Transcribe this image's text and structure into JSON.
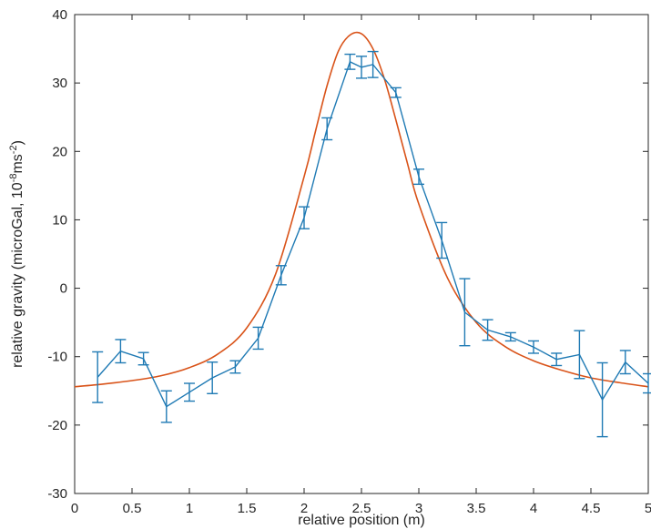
{
  "chart_data": {
    "type": "line",
    "xlabel": "relative position (m)",
    "ylabel": {
      "prefix": "relative gravity (microGal, 10",
      "sup1": "-8",
      "middle": "ms",
      "sup2": "-2",
      "suffix": ")"
    },
    "xlim": [
      0,
      5
    ],
    "ylim": [
      -30,
      40
    ],
    "xticks": [
      0,
      0.5,
      1,
      1.5,
      2,
      2.5,
      3,
      3.5,
      4,
      4.5,
      5
    ],
    "xtick_labels": [
      "0",
      "0.5",
      "1",
      "1.5",
      "2",
      "2.5",
      "3",
      "3.5",
      "4",
      "4.5",
      "5"
    ],
    "yticks": [
      -30,
      -20,
      -10,
      0,
      10,
      20,
      30,
      40
    ],
    "ytick_labels": [
      "-30",
      "-20",
      "-10",
      "0",
      "10",
      "20",
      "30",
      "40"
    ],
    "grid": false,
    "series": [
      {
        "kind": "errorbar-line",
        "color": "#1f7ab4",
        "x": [
          0.2,
          0.4,
          0.6,
          0.8,
          1.0,
          1.2,
          1.4,
          1.6,
          1.8,
          2.0,
          2.2,
          2.4,
          2.5,
          2.6,
          2.8,
          3.0,
          3.2,
          3.4,
          3.6,
          3.8,
          4.0,
          4.2,
          4.4,
          4.6,
          4.8,
          5.0
        ],
        "y": [
          -13,
          -9.2,
          -10.3,
          -17.3,
          -15.2,
          -13.1,
          -11.5,
          -7.3,
          1.9,
          10.3,
          23.3,
          33.1,
          32.3,
          32.7,
          28.6,
          16.3,
          7.0,
          -3.5,
          -6.1,
          -7.1,
          -8.6,
          -10.4,
          -9.7,
          -16.3,
          -10.8,
          -13.9
        ],
        "err": [
          3.7,
          1.7,
          0.9,
          2.3,
          1.3,
          2.3,
          0.9,
          1.6,
          1.4,
          1.6,
          1.6,
          1.1,
          1.6,
          1.9,
          0.7,
          1.1,
          2.6,
          4.9,
          1.5,
          0.6,
          0.9,
          0.9,
          3.5,
          5.4,
          1.7,
          1.4
        ]
      },
      {
        "kind": "model-curve",
        "color": "#d95319",
        "x": [
          0,
          0.25,
          0.5,
          0.75,
          1.0,
          1.25,
          1.5,
          1.75,
          2.0,
          2.1,
          2.2,
          2.3,
          2.4,
          2.5,
          2.6,
          2.7,
          2.8,
          2.9,
          3.0,
          3.25,
          3.5,
          3.75,
          4.0,
          4.25,
          4.5,
          4.75,
          5.0
        ],
        "y": [
          -14.4,
          -14.0,
          -13.5,
          -12.8,
          -11.6,
          -9.6,
          -5.8,
          2.0,
          16.3,
          23.0,
          29.6,
          34.7,
          37.0,
          37.2,
          35.0,
          30.6,
          24.6,
          18.3,
          12.3,
          1.5,
          -5.0,
          -8.5,
          -10.6,
          -12.0,
          -13.1,
          -13.8,
          -14.4
        ]
      }
    ]
  }
}
